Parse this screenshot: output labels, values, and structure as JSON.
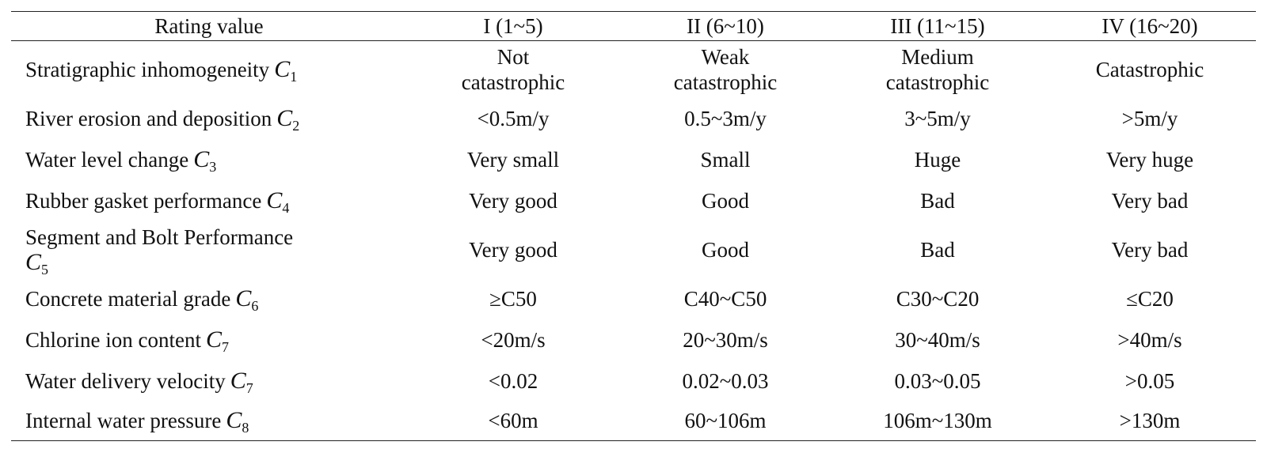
{
  "table": {
    "headers": [
      "Rating value",
      "I (1~5)",
      "II (6~10)",
      "III (11~15)",
      "IV (16~20)"
    ],
    "rows": [
      {
        "factor": "Stratigraphic inhomogeneity",
        "symbol": "C",
        "sub": "1",
        "values": [
          "Not catastrophic",
          "Weak catastrophic",
          "Medium catastrophic",
          "Catastrophic"
        ]
      },
      {
        "factor": "River erosion and deposition",
        "symbol": "C",
        "sub": "2",
        "values": [
          "<0.5m/y",
          "0.5~3m/y",
          "3~5m/y",
          ">5m/y"
        ]
      },
      {
        "factor": "Water level change",
        "symbol": "C",
        "sub": "3",
        "values": [
          "Very small",
          "Small",
          "Huge",
          "Very huge"
        ]
      },
      {
        "factor": "Rubber gasket performance",
        "symbol": "C",
        "sub": "4",
        "values": [
          "Very good",
          "Good",
          "Bad",
          "Very bad"
        ]
      },
      {
        "factor": "Segment and Bolt Performance",
        "symbol": "C",
        "sub": "5",
        "values": [
          "Very good",
          "Good",
          "Bad",
          "Very bad"
        ]
      },
      {
        "factor": "Concrete material grade",
        "symbol": "C",
        "sub": "6",
        "values": [
          "≥C50",
          "C40~C50",
          "C30~C20",
          "≤C20"
        ]
      },
      {
        "factor": "Chlorine ion content",
        "symbol": "C",
        "sub": "7",
        "values": [
          "<20m/s",
          "20~30m/s",
          "30~40m/s",
          ">40m/s"
        ]
      },
      {
        "factor": "Water delivery velocity",
        "symbol": "C",
        "sub": "7",
        "values": [
          "<0.02",
          "0.02~0.03",
          "0.03~0.05",
          ">0.05"
        ]
      },
      {
        "factor": "Internal water pressure",
        "symbol": "C",
        "sub": "8",
        "values": [
          "<60m",
          "60~106m",
          "106m~130m",
          ">130m"
        ]
      }
    ]
  }
}
